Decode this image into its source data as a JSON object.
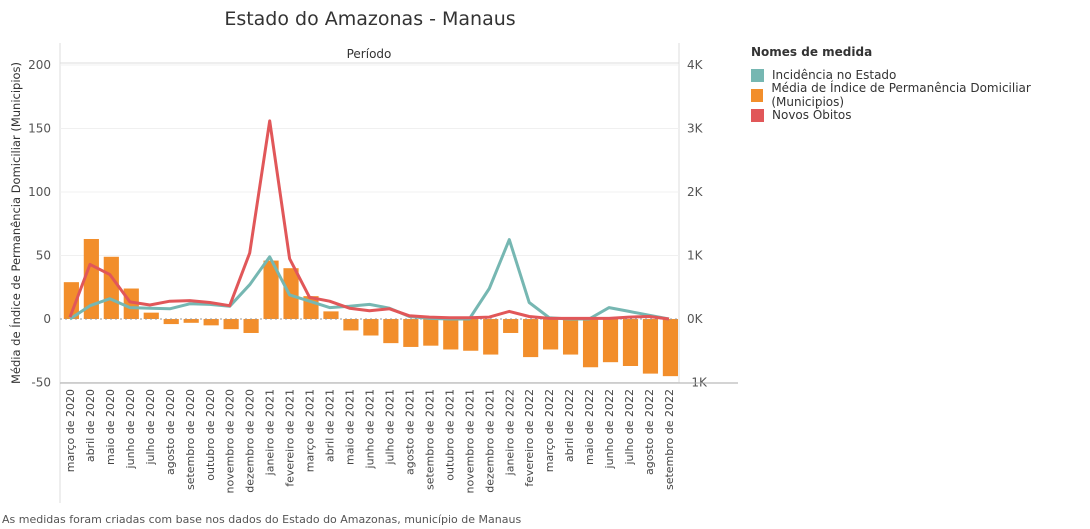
{
  "chart_data": {
    "type": "bar+line",
    "title": "Estado do Amazonas - Manaus",
    "header_label": "Período",
    "ylabel_left": "Média de Índice de Permanência Domiciliar (Municipios)",
    "left_ticks": [
      "200",
      "150",
      "100",
      "50",
      "0",
      "-50"
    ],
    "right_ticks": [
      "4K",
      "3K",
      "2K",
      "1K",
      "0K",
      "-1K"
    ],
    "ylim_left": [
      -52,
      208
    ],
    "ylim_right": [
      -1040,
      4160
    ],
    "categories": [
      "março de 2020",
      "abril de 2020",
      "maio de 2020",
      "junho de 2020",
      "julho de 2020",
      "agosto de 2020",
      "setembro de 2020",
      "outubro de 2020",
      "novembro de 2020",
      "dezembro de 2020",
      "janeiro de 2021",
      "fevereiro de 2021",
      "março de 2021",
      "abril de 2021",
      "maio de 2021",
      "junho de 2021",
      "julho de 2021",
      "agosto de 2021",
      "setembro de 2021",
      "outubro de 2021",
      "novembro de 2021",
      "dezembro de 2021",
      "janeiro de 2022",
      "fevereiro de 2022",
      "março de 2022",
      "abril de 2022",
      "maio de 2022",
      "junho de 2022",
      "julho de 2022",
      "agosto de 2022",
      "setembro de 2022"
    ],
    "legend_title": "Nomes de medida",
    "series": [
      {
        "name": "Incidência no Estado",
        "axis": "right",
        "kind": "line",
        "color": "#76b7b2",
        "values": [
          0,
          210,
          320,
          180,
          170,
          160,
          240,
          230,
          200,
          540,
          980,
          380,
          280,
          180,
          200,
          230,
          170,
          40,
          10,
          0,
          0,
          480,
          1250,
          260,
          20,
          0,
          0,
          180,
          120,
          60,
          0
        ]
      },
      {
        "name": "Média de Índice de Permanência Domiciliar (Municipios)",
        "axis": "left",
        "kind": "bar",
        "color": "#f28e2b",
        "values": [
          29,
          63,
          49,
          24,
          5,
          -4,
          -3,
          -5,
          -8,
          -11,
          46,
          40,
          18,
          6,
          -9,
          -13,
          -19,
          -22,
          -21,
          -24,
          -25,
          -28,
          -11,
          -30,
          -24,
          -28,
          -38,
          -34,
          -37,
          -43,
          -45
        ]
      },
      {
        "name": "Novos Óbitos",
        "axis": "right",
        "kind": "line",
        "color": "#e15759",
        "values": [
          30,
          860,
          700,
          270,
          220,
          280,
          290,
          260,
          210,
          1040,
          3120,
          950,
          340,
          280,
          170,
          130,
          160,
          50,
          30,
          20,
          20,
          30,
          120,
          40,
          10,
          10,
          10,
          10,
          30,
          40,
          0
        ]
      }
    ]
  },
  "footnote": "As medidas foram criadas com base nos dados do Estado do Amazonas, município de Manaus"
}
